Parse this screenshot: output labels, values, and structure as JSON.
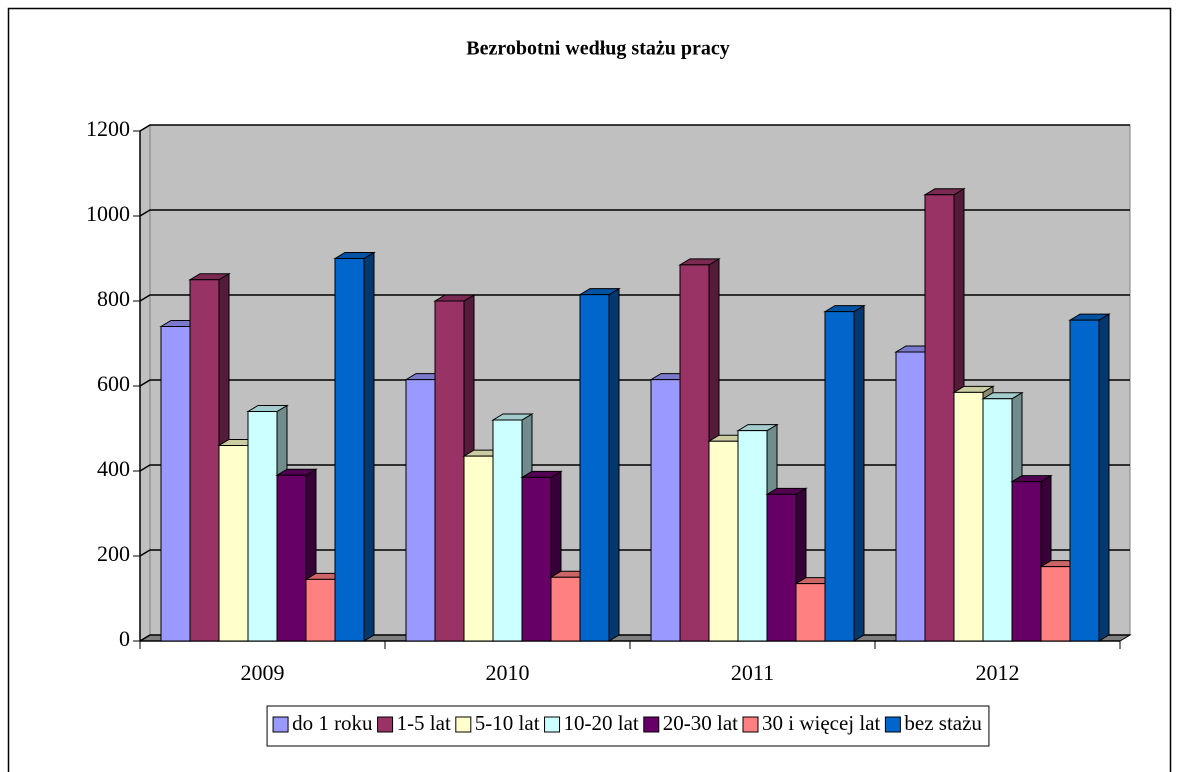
{
  "chart_data": {
    "type": "bar3d",
    "title": "Bezrobotni według stażu pracy",
    "categories": [
      "2009",
      "2010",
      "2011",
      "2012"
    ],
    "series": [
      {
        "name": "do 1 roku",
        "color": "#9999ff",
        "values": [
          740,
          615,
          615,
          680
        ]
      },
      {
        "name": "1-5 lat",
        "color": "#993366",
        "values": [
          850,
          800,
          885,
          1050
        ]
      },
      {
        "name": "5-10 lat",
        "color": "#ffffcc",
        "values": [
          460,
          435,
          470,
          585
        ]
      },
      {
        "name": "10-20 lat",
        "color": "#ccffff",
        "values": [
          540,
          520,
          495,
          570
        ]
      },
      {
        "name": "20-30 lat",
        "color": "#660066",
        "values": [
          390,
          385,
          345,
          375
        ]
      },
      {
        "name": "30 i więcej lat",
        "color": "#ff8080",
        "values": [
          145,
          150,
          135,
          175
        ]
      },
      {
        "name": "bez stażu",
        "color": "#0066cc",
        "values": [
          900,
          815,
          775,
          755
        ]
      }
    ],
    "ylim": [
      0,
      1200
    ],
    "yticks": [
      0,
      200,
      400,
      600,
      800,
      1000,
      1200
    ],
    "grid": true,
    "legend": "bottom"
  }
}
